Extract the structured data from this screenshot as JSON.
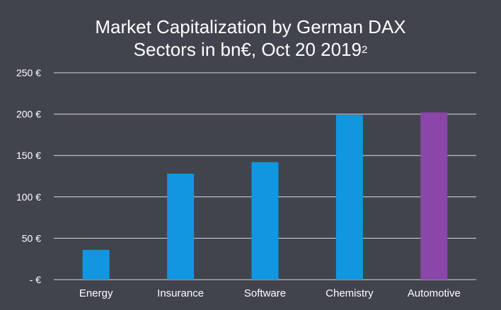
{
  "chart_data": {
    "type": "bar",
    "title_line1": "Market Capitalization by German DAX",
    "title_line2": "Sectors in bn€, Oct 20 2019",
    "title_superscript": "2",
    "categories": [
      "Energy",
      "Insurance",
      "Software",
      "Chemistry",
      "Automotive"
    ],
    "values": [
      36,
      128,
      142,
      199,
      202
    ],
    "bar_colors": [
      "#1197e0",
      "#1197e0",
      "#1197e0",
      "#1197e0",
      "#8a46a8"
    ],
    "ylim": [
      0,
      250
    ],
    "yticks": [
      0,
      50,
      100,
      150,
      200,
      250
    ],
    "ytick_labels": [
      "-  €",
      "50 €",
      "100 €",
      "150 €",
      "200 €",
      "250 €"
    ],
    "grid": true,
    "xlabel": "",
    "ylabel": ""
  },
  "colors": {
    "background": "#41444d",
    "grid": "#d9d9d9",
    "text": "#ffffff"
  }
}
